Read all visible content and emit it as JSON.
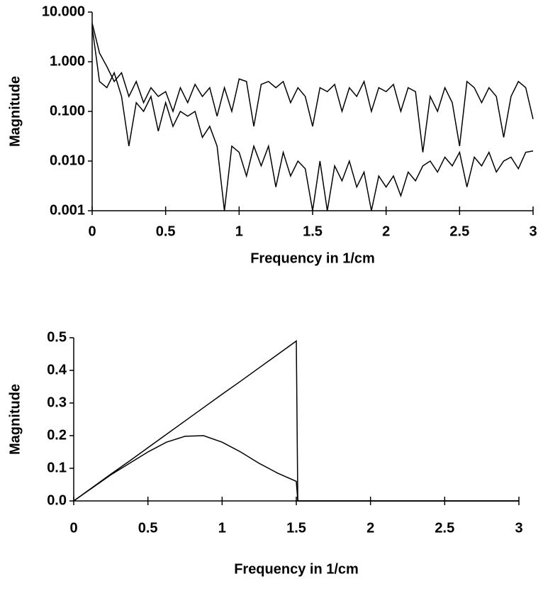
{
  "chart_data": [
    {
      "type": "line",
      "log_y": true,
      "y_label": "Magnitude",
      "x_label": "Frequency in 1/cm",
      "x": [
        0,
        0.05,
        0.1,
        0.15,
        0.2,
        0.25,
        0.3,
        0.35,
        0.4,
        0.45,
        0.5,
        0.55,
        0.6,
        0.65,
        0.7,
        0.75,
        0.8,
        0.85,
        0.9,
        0.95,
        1,
        1.05,
        1.1,
        1.15,
        1.2,
        1.25,
        1.3,
        1.35,
        1.4,
        1.45,
        1.5,
        1.55,
        1.6,
        1.65,
        1.7,
        1.75,
        1.8,
        1.85,
        1.9,
        1.95,
        2,
        2.05,
        2.1,
        2.15,
        2.2,
        2.25,
        2.3,
        2.35,
        2.4,
        2.45,
        2.5,
        2.55,
        2.6,
        2.65,
        2.7,
        2.75,
        2.8,
        2.85,
        2.9,
        2.95,
        3
      ],
      "series": [
        {
          "color": "#000000",
          "values": [
            6,
            1.5,
            0.8,
            0.4,
            0.6,
            0.2,
            0.4,
            0.15,
            0.3,
            0.2,
            0.25,
            0.1,
            0.3,
            0.15,
            0.35,
            0.2,
            0.3,
            0.08,
            0.3,
            0.1,
            0.45,
            0.4,
            0.05,
            0.35,
            0.4,
            0.3,
            0.4,
            0.15,
            0.3,
            0.2,
            0.05,
            0.3,
            0.25,
            0.35,
            0.1,
            0.3,
            0.2,
            0.4,
            0.1,
            0.3,
            0.25,
            0.35,
            0.1,
            0.3,
            0.25,
            0.015,
            0.2,
            0.1,
            0.3,
            0.15,
            0.02,
            0.4,
            0.3,
            0.15,
            0.3,
            0.2,
            0.03,
            0.2,
            0.4,
            0.3,
            0.07
          ]
        },
        {
          "color": "#000000",
          "values": [
            5,
            0.4,
            0.3,
            0.6,
            0.2,
            0.02,
            0.15,
            0.1,
            0.2,
            0.04,
            0.15,
            0.05,
            0.1,
            0.08,
            0.1,
            0.03,
            0.05,
            0.02,
            0.001,
            0.02,
            0.015,
            0.005,
            0.02,
            0.008,
            0.02,
            0.003,
            0.015,
            0.005,
            0.01,
            0.007,
            0.001,
            0.01,
            0.001,
            0.008,
            0.004,
            0.01,
            0.003,
            0.006,
            0.001,
            0.005,
            0.003,
            0.005,
            0.002,
            0.006,
            0.004,
            0.008,
            0.01,
            0.006,
            0.012,
            0.008,
            0.015,
            0.003,
            0.012,
            0.008,
            0.015,
            0.006,
            0.01,
            0.012,
            0.007,
            0.015,
            0.016
          ]
        }
      ],
      "xlim": [
        0,
        3
      ],
      "xticks": [
        0,
        0.5,
        1,
        1.5,
        2,
        2.5,
        3
      ],
      "ylim": [
        0.001,
        10
      ],
      "yticks": [
        0.001,
        {
          "value": 0.01,
          "label": "0.010"
        },
        {
          "value": 0.1,
          "label": "0.100"
        },
        {
          "value": 1,
          "label": "1.000"
        },
        {
          "value": 10,
          "label": "10.000"
        }
      ]
    },
    {
      "type": "line",
      "log_y": false,
      "y_label": "Magnitude",
      "x_label": "Frequency in 1/cm",
      "x": [
        0,
        0.125,
        0.25,
        0.375,
        0.5,
        0.625,
        0.75,
        0.875,
        1,
        1.125,
        1.25,
        1.375,
        1.5,
        1.51,
        2,
        2.5,
        3
      ],
      "series": [
        {
          "color": "#000000",
          "values": [
            0,
            0.041,
            0.082,
            0.122,
            0.163,
            0.204,
            0.245,
            0.286,
            0.327,
            0.367,
            0.408,
            0.449,
            0.49,
            0,
            0,
            0,
            0
          ]
        },
        {
          "color": "#000000",
          "values": [
            0,
            0.04,
            0.08,
            0.115,
            0.15,
            0.18,
            0.198,
            0.2,
            0.18,
            0.15,
            0.115,
            0.085,
            0.06,
            0,
            0,
            0,
            0
          ]
        }
      ],
      "xlim": [
        0,
        3
      ],
      "xticks": [
        0,
        0.5,
        1,
        1.5,
        2,
        2.5,
        3
      ],
      "ylim": [
        0,
        0.5
      ],
      "yticks": [
        {
          "value": 0,
          "label": "0.0"
        },
        0.1,
        0.2,
        0.3,
        0.4,
        0.5
      ]
    }
  ]
}
